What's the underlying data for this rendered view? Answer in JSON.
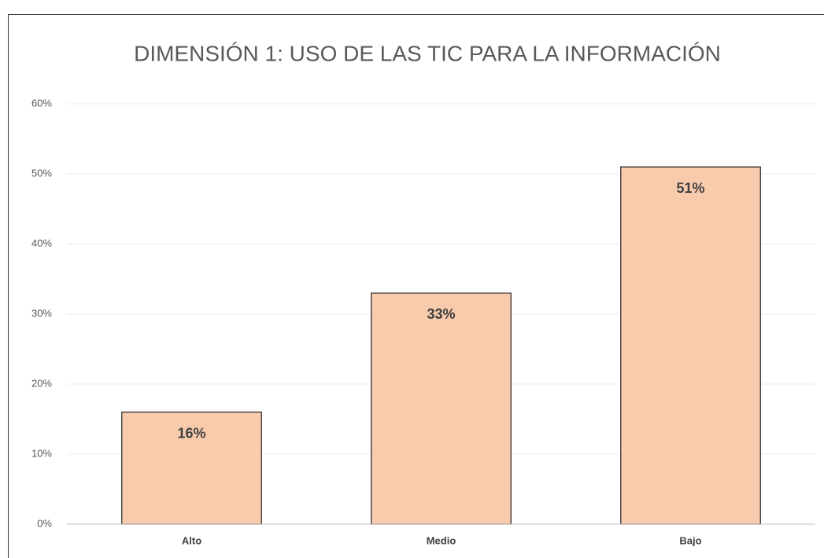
{
  "chart_data": {
    "type": "bar",
    "title": "DIMENSIÓN 1: USO DE LAS TIC PARA LA INFORMACIÓN",
    "categories": [
      "Alto",
      "Medio",
      "Bajo"
    ],
    "values": [
      16,
      33,
      51
    ],
    "value_labels": [
      "16%",
      "33%",
      "51%"
    ],
    "color": "#f8cbad",
    "ylim": [
      0,
      60
    ],
    "yticks": [
      {
        "value": 0,
        "label": "0%"
      },
      {
        "value": 10,
        "label": "10%"
      },
      {
        "value": 20,
        "label": "20%"
      },
      {
        "value": 30,
        "label": "30%"
      },
      {
        "value": 40,
        "label": "40%"
      },
      {
        "value": 50,
        "label": "50%"
      },
      {
        "value": 60,
        "label": "60%"
      }
    ],
    "grid": true
  }
}
